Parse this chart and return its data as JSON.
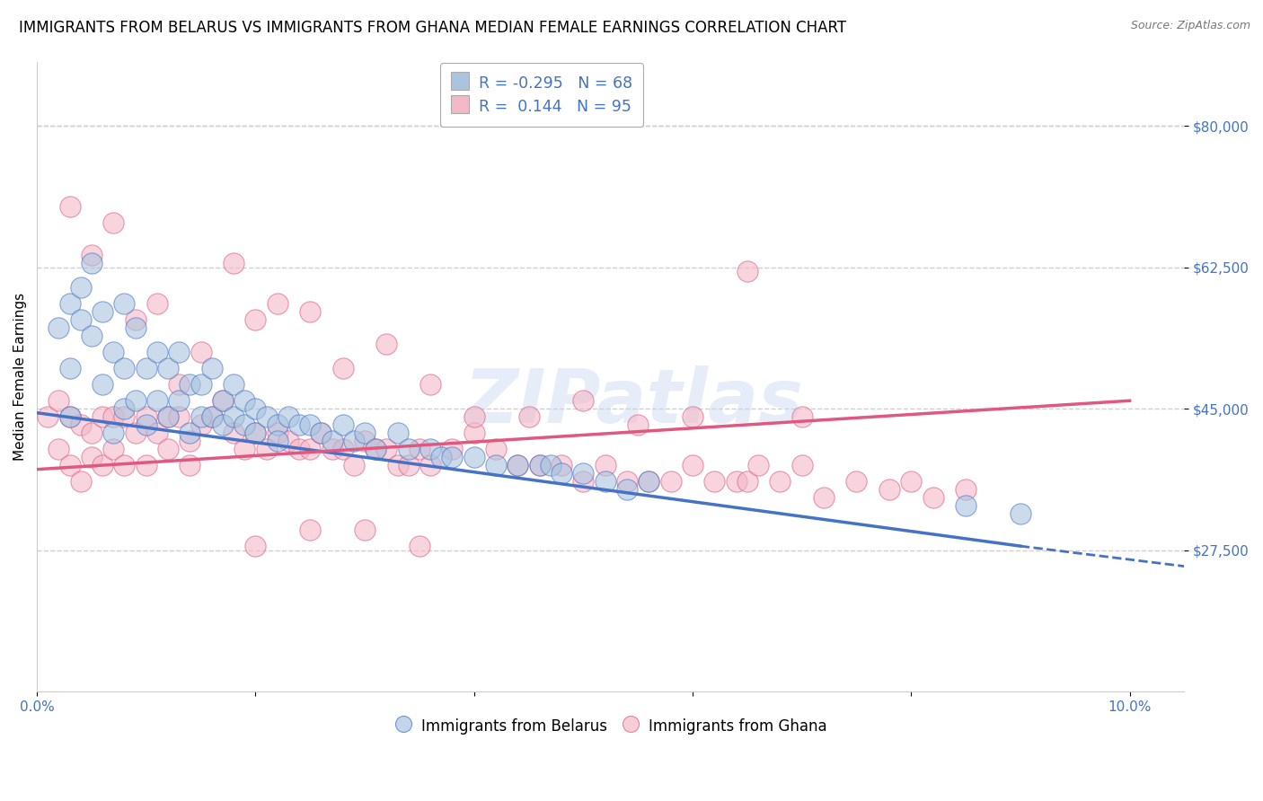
{
  "title": "IMMIGRANTS FROM BELARUS VS IMMIGRANTS FROM GHANA MEDIAN FEMALE EARNINGS CORRELATION CHART",
  "source": "Source: ZipAtlas.com",
  "ylabel": "Median Female Earnings",
  "watermark": "ZIPatlas",
  "xlim": [
    0.0,
    0.105
  ],
  "ylim": [
    10000,
    88000
  ],
  "yticks": [
    27500,
    45000,
    62500,
    80000
  ],
  "ytick_labels": [
    "$27,500",
    "$45,000",
    "$62,500",
    "$80,000"
  ],
  "xticks": [
    0.0,
    0.02,
    0.04,
    0.06,
    0.08,
    0.1
  ],
  "xtick_labels": [
    "0.0%",
    "",
    "",
    "",
    "",
    "10.0%"
  ],
  "legend_label_belarus": "Immigrants from Belarus",
  "legend_label_ghana": "Immigrants from Ghana",
  "belarus_color": "#aac4e0",
  "ghana_color": "#f4b8c8",
  "trend_belarus_color": "#4472c4",
  "trend_ghana_color": "#e05880",
  "axis_color": "#4472c4",
  "grid_color": "#d0d0d0",
  "title_fontsize": 12,
  "label_fontsize": 11,
  "tick_fontsize": 11,
  "watermark_fontsize": 60,
  "watermark_color": "#c8d8f0",
  "watermark_alpha": 0.45,
  "belarus_x": [
    0.002,
    0.003,
    0.003,
    0.003,
    0.004,
    0.004,
    0.005,
    0.005,
    0.006,
    0.006,
    0.007,
    0.007,
    0.008,
    0.008,
    0.008,
    0.009,
    0.009,
    0.01,
    0.01,
    0.011,
    0.011,
    0.012,
    0.012,
    0.013,
    0.013,
    0.014,
    0.014,
    0.015,
    0.015,
    0.016,
    0.016,
    0.017,
    0.017,
    0.018,
    0.018,
    0.019,
    0.019,
    0.02,
    0.02,
    0.021,
    0.022,
    0.022,
    0.023,
    0.024,
    0.025,
    0.026,
    0.027,
    0.028,
    0.029,
    0.03,
    0.031,
    0.033,
    0.034,
    0.036,
    0.037,
    0.038,
    0.04,
    0.042,
    0.044,
    0.046,
    0.047,
    0.048,
    0.05,
    0.052,
    0.054,
    0.056,
    0.085,
    0.09
  ],
  "belarus_y": [
    55000,
    58000,
    50000,
    44000,
    60000,
    56000,
    54000,
    63000,
    57000,
    48000,
    52000,
    42000,
    58000,
    50000,
    45000,
    55000,
    46000,
    50000,
    43000,
    52000,
    46000,
    50000,
    44000,
    52000,
    46000,
    48000,
    42000,
    48000,
    44000,
    50000,
    44000,
    46000,
    43000,
    48000,
    44000,
    46000,
    43000,
    45000,
    42000,
    44000,
    43000,
    41000,
    44000,
    43000,
    43000,
    42000,
    41000,
    43000,
    41000,
    42000,
    40000,
    42000,
    40000,
    40000,
    39000,
    39000,
    39000,
    38000,
    38000,
    38000,
    38000,
    37000,
    37000,
    36000,
    35000,
    36000,
    33000,
    32000
  ],
  "ghana_x": [
    0.001,
    0.002,
    0.002,
    0.003,
    0.003,
    0.004,
    0.004,
    0.005,
    0.005,
    0.006,
    0.006,
    0.007,
    0.007,
    0.008,
    0.008,
    0.009,
    0.01,
    0.01,
    0.011,
    0.012,
    0.012,
    0.013,
    0.014,
    0.014,
    0.015,
    0.016,
    0.017,
    0.018,
    0.019,
    0.02,
    0.021,
    0.022,
    0.023,
    0.024,
    0.025,
    0.026,
    0.027,
    0.028,
    0.029,
    0.03,
    0.031,
    0.032,
    0.033,
    0.034,
    0.035,
    0.036,
    0.038,
    0.04,
    0.042,
    0.044,
    0.046,
    0.048,
    0.05,
    0.052,
    0.054,
    0.056,
    0.058,
    0.06,
    0.062,
    0.064,
    0.065,
    0.066,
    0.068,
    0.07,
    0.072,
    0.075,
    0.078,
    0.08,
    0.082,
    0.085,
    0.003,
    0.005,
    0.007,
    0.009,
    0.011,
    0.013,
    0.015,
    0.018,
    0.02,
    0.022,
    0.025,
    0.028,
    0.032,
    0.036,
    0.04,
    0.045,
    0.05,
    0.055,
    0.06,
    0.065,
    0.07,
    0.02,
    0.025,
    0.03,
    0.035
  ],
  "ghana_y": [
    44000,
    46000,
    40000,
    44000,
    38000,
    43000,
    36000,
    42000,
    39000,
    44000,
    38000,
    44000,
    40000,
    44000,
    38000,
    42000,
    44000,
    38000,
    42000,
    44000,
    40000,
    44000,
    41000,
    38000,
    43000,
    44000,
    46000,
    42000,
    40000,
    42000,
    40000,
    42000,
    41000,
    40000,
    40000,
    42000,
    40000,
    40000,
    38000,
    41000,
    40000,
    40000,
    38000,
    38000,
    40000,
    38000,
    40000,
    42000,
    40000,
    38000,
    38000,
    38000,
    36000,
    38000,
    36000,
    36000,
    36000,
    38000,
    36000,
    36000,
    36000,
    38000,
    36000,
    38000,
    34000,
    36000,
    35000,
    36000,
    34000,
    35000,
    70000,
    64000,
    68000,
    56000,
    58000,
    48000,
    52000,
    63000,
    56000,
    58000,
    57000,
    50000,
    53000,
    48000,
    44000,
    44000,
    46000,
    43000,
    44000,
    62000,
    44000,
    28000,
    30000,
    30000,
    28000
  ],
  "trend_b_x0": 0.0,
  "trend_b_y0": 44500,
  "trend_b_x1": 0.09,
  "trend_b_y1": 28000,
  "trend_b_dashed_x1": 0.105,
  "trend_b_dashed_y1": 25500,
  "trend_g_x0": 0.0,
  "trend_g_y0": 37500,
  "trend_g_x1": 0.1,
  "trend_g_y1": 46000
}
